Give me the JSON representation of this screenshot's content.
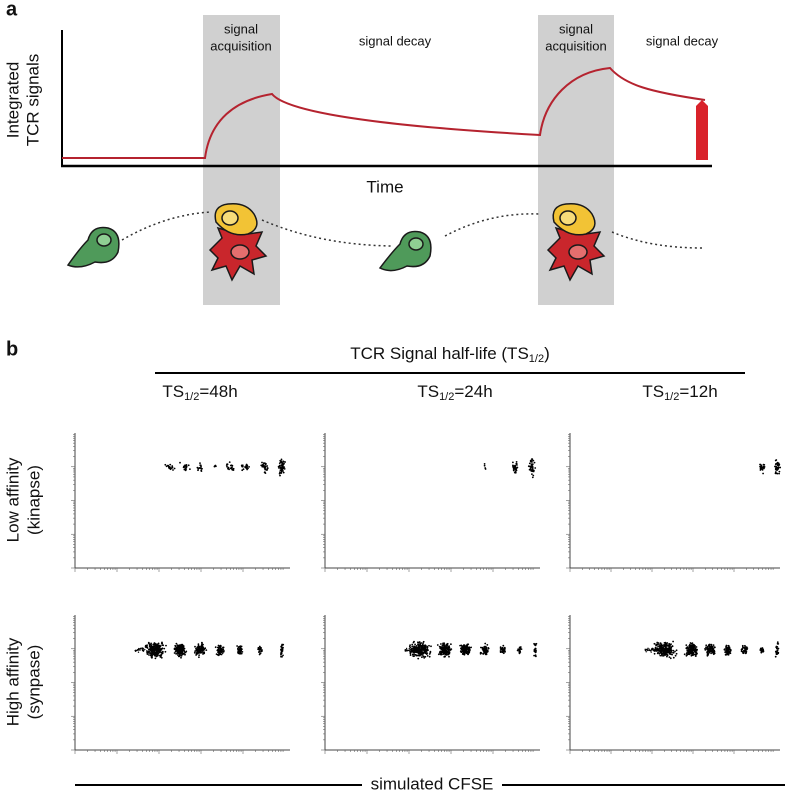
{
  "panel_a": {
    "label": "a",
    "y_axis_label": [
      "Integrated",
      "TCR signals"
    ],
    "x_axis_label": "Time",
    "bands": [
      {
        "title": [
          "signal",
          "acquisition"
        ],
        "next": "signal decay"
      },
      {
        "title": [
          "signal",
          "acquisition"
        ],
        "next": "signal decay"
      }
    ]
  },
  "panel_b": {
    "label": "b",
    "header": {
      "text": "TCR Signal half-life (TS",
      "sub": "1/2",
      "end": ")"
    },
    "columns": [
      {
        "prefix": "TS",
        "sub": "1/2",
        "suffix": "=48h"
      },
      {
        "prefix": "TS",
        "sub": "1/2",
        "suffix": "=24h"
      },
      {
        "prefix": "TS",
        "sub": "1/2",
        "suffix": "=12h"
      }
    ],
    "rows": [
      [
        "Low affinity",
        "(kinapse)"
      ],
      [
        "High affinity",
        "(synpase)"
      ]
    ],
    "x_axis_label": "simulated CFSE"
  }
}
